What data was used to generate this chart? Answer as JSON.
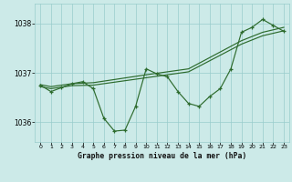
{
  "bg_color": "#cceae8",
  "grid_color": "#99cccc",
  "line_color": "#2d6b2d",
  "title": "Graphe pression niveau de la mer (hPa)",
  "xlim": [
    -0.5,
    23.5
  ],
  "ylim": [
    1035.6,
    1038.4
  ],
  "yticks": [
    1036,
    1037,
    1038
  ],
  "xticks": [
    0,
    1,
    2,
    3,
    4,
    5,
    6,
    7,
    8,
    9,
    10,
    11,
    12,
    13,
    14,
    15,
    16,
    17,
    18,
    19,
    20,
    21,
    22,
    23
  ],
  "line1_x": [
    0,
    1,
    2,
    3,
    4,
    5,
    6,
    7,
    8,
    9,
    10,
    11,
    12,
    13,
    14,
    15,
    16,
    17,
    18,
    19,
    20,
    21,
    22,
    23
  ],
  "line1_y": [
    1036.75,
    1036.62,
    1036.7,
    1036.78,
    1036.82,
    1036.68,
    1036.08,
    1035.82,
    1035.84,
    1036.32,
    1037.08,
    1036.98,
    1036.92,
    1036.62,
    1036.38,
    1036.32,
    1036.52,
    1036.68,
    1037.08,
    1037.82,
    1037.92,
    1038.08,
    1037.96,
    1037.84
  ],
  "line2_x": [
    0,
    1,
    3,
    5,
    10,
    14,
    19,
    21,
    22,
    23
  ],
  "line2_y": [
    1036.72,
    1036.68,
    1036.74,
    1036.75,
    1036.9,
    1037.02,
    1037.58,
    1037.75,
    1037.8,
    1037.85
  ],
  "line3_x": [
    0,
    1,
    3,
    5,
    10,
    14,
    19,
    21,
    22,
    23
  ],
  "line3_y": [
    1036.76,
    1036.72,
    1036.78,
    1036.8,
    1036.96,
    1037.08,
    1037.65,
    1037.82,
    1037.87,
    1037.92
  ]
}
